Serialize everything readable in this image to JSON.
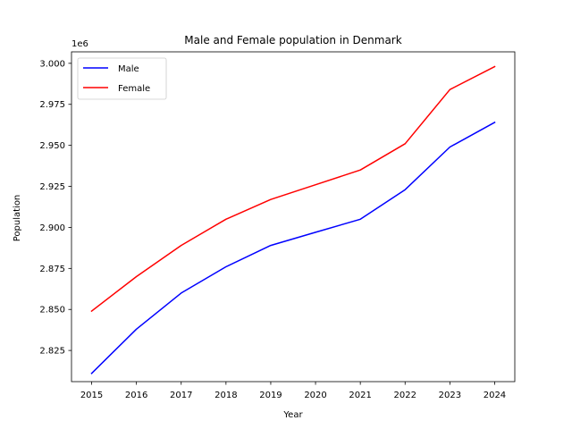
{
  "chart_data": {
    "type": "line",
    "title": "Male and Female population in Denmark",
    "xlabel": "Year",
    "ylabel": "Population",
    "y_offset_label": "1e6",
    "x": [
      2015,
      2016,
      2017,
      2018,
      2019,
      2020,
      2021,
      2022,
      2023,
      2024
    ],
    "x_tick_labels": [
      "2015",
      "2016",
      "2017",
      "2018",
      "2019",
      "2020",
      "2021",
      "2022",
      "2023",
      "2024"
    ],
    "y_tick_values": [
      2.825,
      2.85,
      2.875,
      2.9,
      2.925,
      2.95,
      2.975,
      3.0
    ],
    "y_tick_labels": [
      "2.825",
      "2.850",
      "2.875",
      "2.900",
      "2.925",
      "2.950",
      "2.975",
      "3.000"
    ],
    "ylim": [
      2.806,
      3.007
    ],
    "y_unit_multiplier": 1000000,
    "series": [
      {
        "name": "Male",
        "color": "#0000ff",
        "values": [
          2.811,
          2.838,
          2.86,
          2.876,
          2.889,
          2.897,
          2.905,
          2.923,
          2.949,
          2.964
        ]
      },
      {
        "name": "Female",
        "color": "#ff0000",
        "values": [
          2.849,
          2.87,
          2.889,
          2.905,
          2.917,
          2.926,
          2.935,
          2.951,
          2.984,
          2.998
        ]
      }
    ],
    "legend_position": "upper-left",
    "grid": false
  }
}
